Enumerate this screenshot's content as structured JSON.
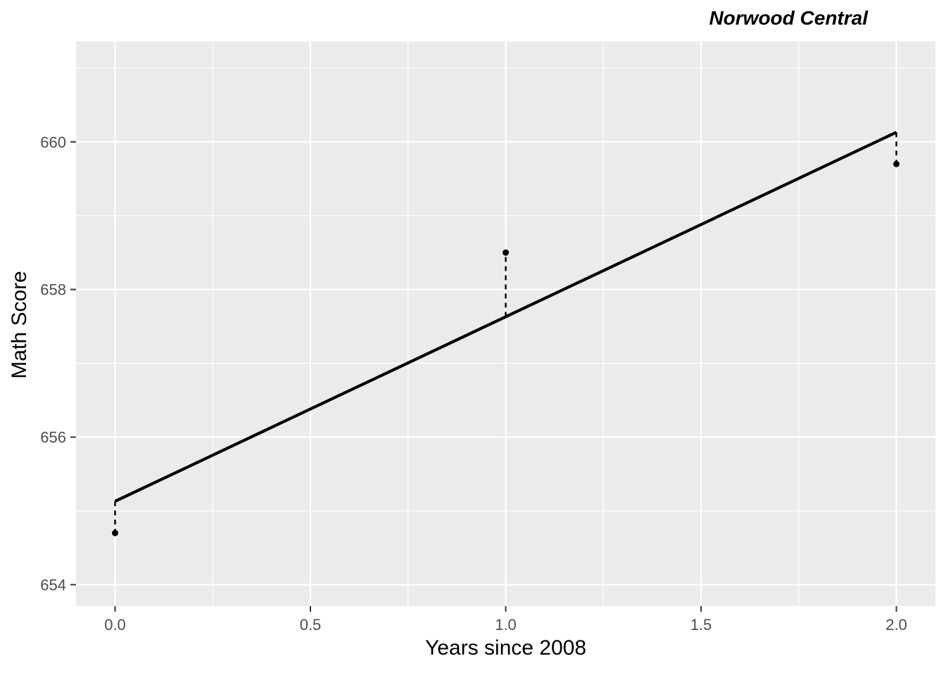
{
  "title": "Norwood Central",
  "axes": {
    "x_label": "Years since 2008",
    "y_label": "Math Score"
  },
  "chart_data": {
    "type": "scatter",
    "title": "Norwood Central",
    "xlabel": "Years since 2008",
    "ylabel": "Math Score",
    "points": [
      {
        "x": 0,
        "y": 654.7
      },
      {
        "x": 1,
        "y": 658.5
      },
      {
        "x": 2,
        "y": 659.7
      }
    ],
    "fit_line": {
      "intercept": 655.13,
      "slope": 2.5,
      "x_start": 0,
      "x_end": 2
    },
    "residual_segments": [
      {
        "x": 0,
        "y_observed": 654.7,
        "y_fitted": 655.13
      },
      {
        "x": 1,
        "y_observed": 658.5,
        "y_fitted": 657.63
      },
      {
        "x": 2,
        "y_observed": 659.7,
        "y_fitted": 660.13
      }
    ],
    "x_ticks": [
      0.0,
      0.5,
      1.0,
      1.5,
      2.0
    ],
    "x_tick_labels": [
      "0.0",
      "0.5",
      "1.0",
      "1.5",
      "2.0"
    ],
    "y_ticks": [
      654,
      656,
      658,
      660
    ],
    "y_tick_labels": [
      "654",
      "656",
      "658",
      "660"
    ],
    "x_minor_gridlines": [
      0.25,
      0.75,
      1.25,
      1.75
    ],
    "y_minor_gridlines": [
      655,
      657,
      659,
      661
    ],
    "xlim": [
      -0.1,
      2.1
    ],
    "ylim": [
      653.71,
      661.36
    ],
    "grid": true,
    "legend_position": "none"
  },
  "style": {
    "panel_background": "#EBEBEB",
    "gridline_color": "#FFFFFF",
    "tick_mark_color": "#333333",
    "tick_label_color": "#4D4D4D",
    "axis_title_color": "#000000",
    "title_color": "#000000",
    "geom_color": "#000000"
  }
}
